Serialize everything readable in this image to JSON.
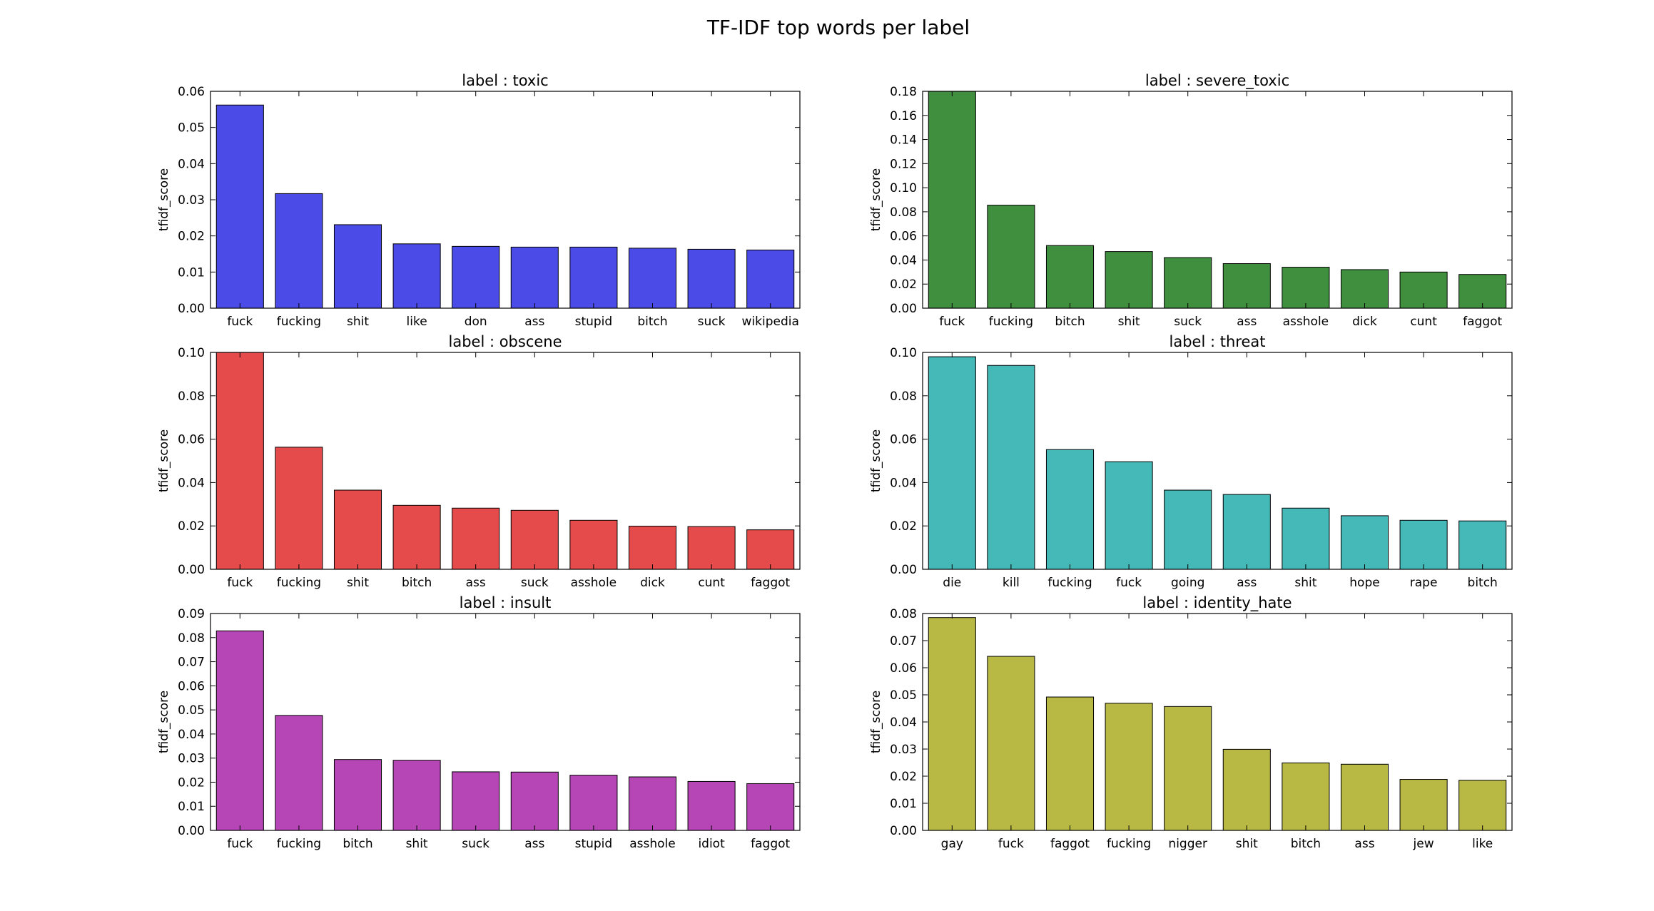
{
  "figure": {
    "title": "TF-IDF top words per label"
  },
  "chart_data": [
    {
      "type": "bar",
      "title": "label : toxic",
      "ylabel": "tfidf_score",
      "color": "#4b4be8",
      "ylim": [
        0,
        0.06
      ],
      "yticks": [
        0.0,
        0.01,
        0.02,
        0.03,
        0.04,
        0.05,
        0.06
      ],
      "ytick_labels": [
        "0.00",
        "0.01",
        "0.02",
        "0.03",
        "0.04",
        "0.05",
        "0.06"
      ],
      "categories": [
        "fuck",
        "fucking",
        "shit",
        "like",
        "don",
        "ass",
        "stupid",
        "bitch",
        "suck",
        "wikipedia"
      ],
      "values": [
        0.0562,
        0.0317,
        0.0231,
        0.0178,
        0.0171,
        0.0169,
        0.0169,
        0.0166,
        0.0163,
        0.0161
      ]
    },
    {
      "type": "bar",
      "title": "label : severe_toxic",
      "ylabel": "tfidf_score",
      "color": "#3f8f3f",
      "ylim": [
        0,
        0.18
      ],
      "yticks": [
        0.0,
        0.02,
        0.04,
        0.06,
        0.08,
        0.1,
        0.12,
        0.14,
        0.16,
        0.18
      ],
      "ytick_labels": [
        "0.00",
        "0.02",
        "0.04",
        "0.06",
        "0.08",
        "0.10",
        "0.12",
        "0.14",
        "0.16",
        "0.18"
      ],
      "categories": [
        "fuck",
        "fucking",
        "bitch",
        "shit",
        "suck",
        "ass",
        "asshole",
        "dick",
        "cunt",
        "faggot"
      ],
      "values": [
        0.18,
        0.0855,
        0.052,
        0.047,
        0.042,
        0.037,
        0.034,
        0.032,
        0.03,
        0.028
      ]
    },
    {
      "type": "bar",
      "title": "label : obscene",
      "ylabel": "tfidf_score",
      "color": "#e64b4b",
      "ylim": [
        0,
        0.1
      ],
      "yticks": [
        0.0,
        0.02,
        0.04,
        0.06,
        0.08,
        0.1
      ],
      "ytick_labels": [
        "0.00",
        "0.02",
        "0.04",
        "0.06",
        "0.08",
        "0.10"
      ],
      "categories": [
        "fuck",
        "fucking",
        "shit",
        "bitch",
        "ass",
        "suck",
        "asshole",
        "dick",
        "cunt",
        "faggot"
      ],
      "values": [
        0.1,
        0.0563,
        0.0365,
        0.0295,
        0.0282,
        0.0272,
        0.0226,
        0.0199,
        0.0197,
        0.0182
      ]
    },
    {
      "type": "bar",
      "title": "label : threat",
      "ylabel": "tfidf_score",
      "color": "#45b8b8",
      "ylim": [
        0,
        0.1
      ],
      "yticks": [
        0.0,
        0.02,
        0.04,
        0.06,
        0.08,
        0.1
      ],
      "ytick_labels": [
        "0.00",
        "0.02",
        "0.04",
        "0.06",
        "0.08",
        "0.10"
      ],
      "categories": [
        "die",
        "kill",
        "fucking",
        "fuck",
        "going",
        "ass",
        "shit",
        "hope",
        "rape",
        "bitch"
      ],
      "values": [
        0.098,
        0.094,
        0.0552,
        0.0496,
        0.0365,
        0.0345,
        0.0282,
        0.0247,
        0.0226,
        0.0223
      ]
    },
    {
      "type": "bar",
      "title": "label : insult",
      "ylabel": "tfidf_score",
      "color": "#b645b6",
      "ylim": [
        0,
        0.09
      ],
      "yticks": [
        0.0,
        0.01,
        0.02,
        0.03,
        0.04,
        0.05,
        0.06,
        0.07,
        0.08,
        0.09
      ],
      "ytick_labels": [
        "0.00",
        "0.01",
        "0.02",
        "0.03",
        "0.04",
        "0.05",
        "0.06",
        "0.07",
        "0.08",
        "0.09"
      ],
      "categories": [
        "fuck",
        "fucking",
        "bitch",
        "shit",
        "suck",
        "ass",
        "stupid",
        "asshole",
        "idiot",
        "faggot"
      ],
      "values": [
        0.0828,
        0.0477,
        0.0294,
        0.0291,
        0.0243,
        0.0242,
        0.0229,
        0.0222,
        0.0203,
        0.0194
      ]
    },
    {
      "type": "bar",
      "title": "label : identity_hate",
      "ylabel": "tfidf_score",
      "color": "#b8b845",
      "ylim": [
        0,
        0.08
      ],
      "yticks": [
        0.0,
        0.01,
        0.02,
        0.03,
        0.04,
        0.05,
        0.06,
        0.07,
        0.08
      ],
      "ytick_labels": [
        "0.00",
        "0.01",
        "0.02",
        "0.03",
        "0.04",
        "0.05",
        "0.06",
        "0.07",
        "0.08"
      ],
      "categories": [
        "gay",
        "fuck",
        "faggot",
        "fucking",
        "nigger",
        "shit",
        "bitch",
        "ass",
        "jew",
        "like"
      ],
      "values": [
        0.0785,
        0.0642,
        0.0492,
        0.0469,
        0.0457,
        0.0299,
        0.0249,
        0.0244,
        0.0188,
        0.0185
      ]
    }
  ]
}
